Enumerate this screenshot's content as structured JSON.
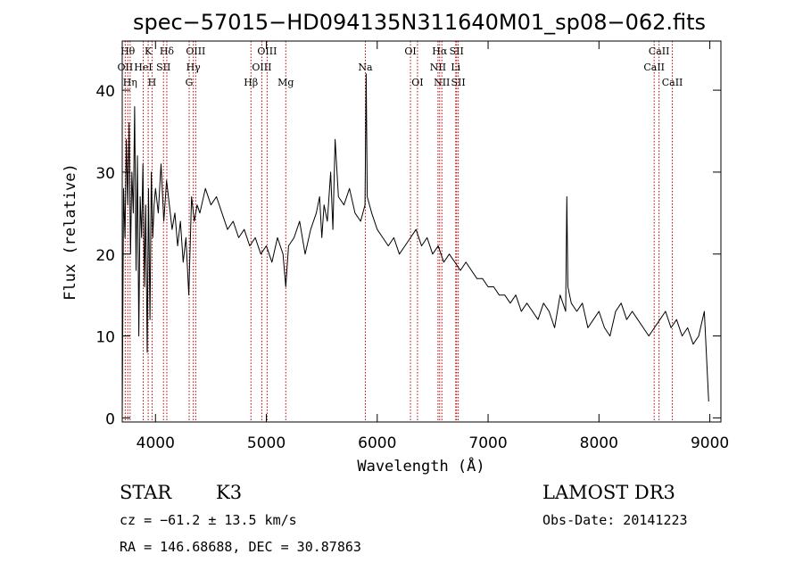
{
  "chart_data": {
    "type": "line",
    "title": "spec−57015−HD094135N311640M01_sp08−062.fits",
    "xlabel": "Wavelength (Å)",
    "ylabel": "Flux (relative)",
    "xlim": [
      3700,
      9100
    ],
    "ylim": [
      -0.5,
      46
    ],
    "xticks": [
      4000,
      5000,
      6000,
      7000,
      8000,
      9000
    ],
    "yticks": [
      0,
      10,
      20,
      30,
      40
    ],
    "grid": false,
    "series": [
      {
        "x": [
          3700,
          3712,
          3725,
          3737,
          3750,
          3762,
          3775,
          3787,
          3800,
          3812,
          3825,
          3837,
          3850,
          3862,
          3875,
          3887,
          3900,
          3912,
          3925,
          3937,
          3950,
          3962,
          3975,
          3987,
          4000,
          4025,
          4050,
          4075,
          4100,
          4125,
          4150,
          4175,
          4200,
          4225,
          4250,
          4275,
          4300,
          4325,
          4350,
          4375,
          4400,
          4450,
          4500,
          4550,
          4600,
          4650,
          4700,
          4750,
          4800,
          4850,
          4900,
          4950,
          5000,
          5050,
          5100,
          5150,
          5175,
          5200,
          5250,
          5300,
          5350,
          5400,
          5450,
          5480,
          5500,
          5520,
          5550,
          5580,
          5600,
          5620,
          5650,
          5700,
          5750,
          5800,
          5850,
          5890,
          5900,
          5910,
          5950,
          6000,
          6050,
          6100,
          6150,
          6200,
          6250,
          6300,
          6350,
          6400,
          6450,
          6500,
          6550,
          6600,
          6650,
          6700,
          6750,
          6800,
          6850,
          6900,
          6950,
          7000,
          7050,
          7100,
          7150,
          7200,
          7250,
          7300,
          7350,
          7400,
          7450,
          7500,
          7550,
          7600,
          7650,
          7700,
          7710,
          7720,
          7750,
          7800,
          7850,
          7900,
          7950,
          8000,
          8050,
          8100,
          8150,
          8200,
          8250,
          8300,
          8350,
          8400,
          8450,
          8500,
          8550,
          8600,
          8650,
          8700,
          8750,
          8800,
          8850,
          8900,
          8950,
          8990
        ],
        "y": [
          0,
          28,
          22,
          34,
          26,
          36,
          20,
          30,
          25,
          38,
          18,
          32,
          10,
          27,
          22,
          31,
          16,
          26,
          8,
          28,
          12,
          30,
          22,
          26,
          28,
          25,
          31,
          24,
          29,
          26,
          23,
          25,
          21,
          24,
          19,
          22,
          15,
          27,
          24,
          26,
          25,
          28,
          26,
          27,
          25,
          23,
          24,
          22,
          23,
          21,
          22,
          20,
          21,
          19,
          22,
          20,
          16,
          21,
          22,
          24,
          20,
          23,
          25,
          27,
          22,
          26,
          24,
          30,
          23,
          34,
          27,
          26,
          28,
          25,
          24,
          26,
          42,
          27,
          25,
          23,
          22,
          21,
          22,
          20,
          21,
          22,
          23,
          21,
          22,
          20,
          21,
          19,
          20,
          19,
          18,
          19,
          18,
          17,
          17,
          16,
          16,
          15,
          15,
          14,
          15,
          13,
          14,
          13,
          12,
          14,
          13,
          11,
          15,
          13,
          27,
          16,
          14,
          13,
          14,
          11,
          12,
          13,
          11,
          10,
          13,
          14,
          12,
          13,
          12,
          11,
          10,
          11,
          12,
          13,
          11,
          12,
          10,
          11,
          9,
          10,
          13,
          2
        ],
        "color": "#000000"
      }
    ],
    "lines": [
      {
        "wavelength": 3727,
        "label": "OII",
        "row": 1
      },
      {
        "wavelength": 3750,
        "label": "Hθ",
        "row": 0
      },
      {
        "wavelength": 3771,
        "label": "Hη",
        "row": 2
      },
      {
        "wavelength": 3889,
        "label": "HeI",
        "row": 1
      },
      {
        "wavelength": 3934,
        "label": "K",
        "row": 0
      },
      {
        "wavelength": 3969,
        "label": "H",
        "row": 2
      },
      {
        "wavelength": 4072,
        "label": "SII",
        "row": 1
      },
      {
        "wavelength": 4102,
        "label": "Hδ",
        "row": 0
      },
      {
        "wavelength": 4304,
        "label": "G",
        "row": 2
      },
      {
        "wavelength": 4341,
        "label": "Hγ",
        "row": 1
      },
      {
        "wavelength": 4363,
        "label": "OIII",
        "row": 0
      },
      {
        "wavelength": 4861,
        "label": "Hβ",
        "row": 2
      },
      {
        "wavelength": 4959,
        "label": "OIII",
        "row": 1
      },
      {
        "wavelength": 5007,
        "label": "OIII",
        "row": 0
      },
      {
        "wavelength": 5175,
        "label": "Mg",
        "row": 2
      },
      {
        "wavelength": 5893,
        "label": "Na",
        "row": 1
      },
      {
        "wavelength": 6300,
        "label": "OI",
        "row": 0
      },
      {
        "wavelength": 6363,
        "label": "OI",
        "row": 2
      },
      {
        "wavelength": 6548,
        "label": "NII",
        "row": 1
      },
      {
        "wavelength": 6563,
        "label": "Hα",
        "row": 0
      },
      {
        "wavelength": 6583,
        "label": "NII",
        "row": 2
      },
      {
        "wavelength": 6708,
        "label": "Li",
        "row": 1
      },
      {
        "wavelength": 6716,
        "label": "SII",
        "row": 0
      },
      {
        "wavelength": 6731,
        "label": "SII",
        "row": 2
      },
      {
        "wavelength": 8498,
        "label": "CaII",
        "row": 1
      },
      {
        "wavelength": 8542,
        "label": "CaII",
        "row": 0
      },
      {
        "wavelength": 8662,
        "label": "CaII",
        "row": 2
      }
    ]
  },
  "info": {
    "class_label": "STAR",
    "subclass": "K3",
    "survey": "LAMOST DR3",
    "redshift": "cz = −61.2 ± 13.5 km/s",
    "obs_date": "Obs-Date: 20141223",
    "coords": "RA = 146.68688, DEC =  30.87863"
  },
  "colors": {
    "line_marker": "#c00000",
    "spectrum": "#000000"
  }
}
